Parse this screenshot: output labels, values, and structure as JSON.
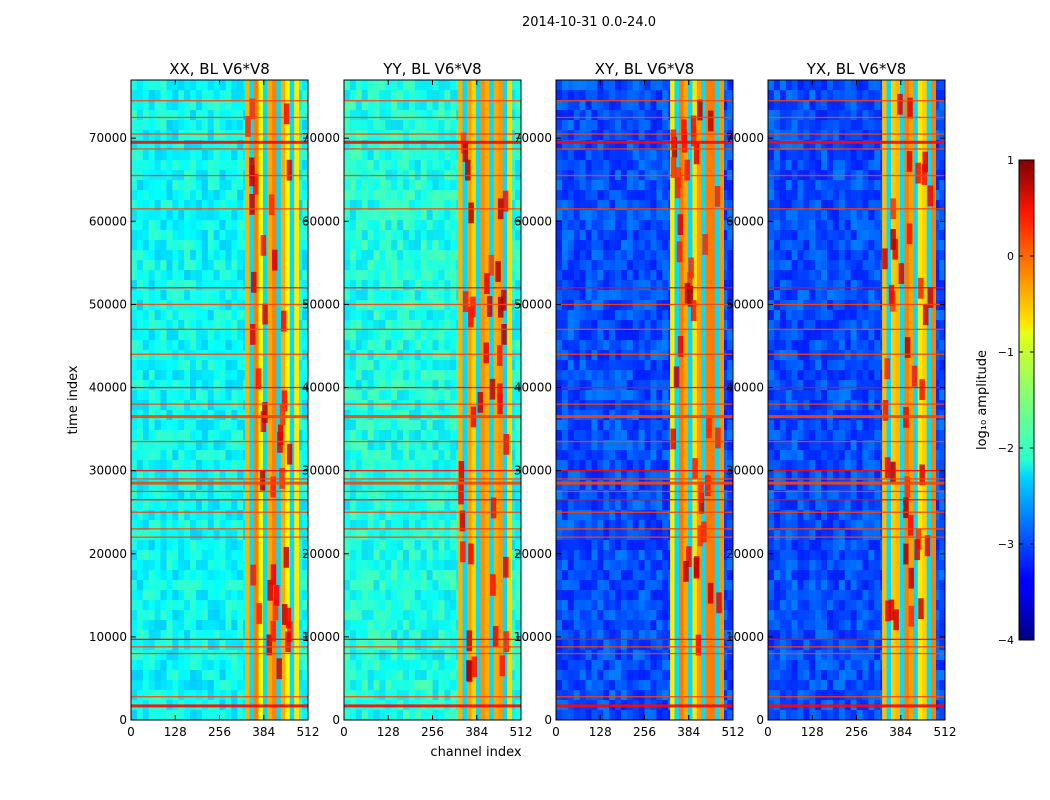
{
  "figure": {
    "suptitle": "2014-10-31 0.0-24.0"
  },
  "chart_data": {
    "type": "heatmap",
    "shared": {
      "xlabel": "channel index",
      "ylabel": "time index",
      "xlim": [
        0,
        512
      ],
      "ylim": [
        0,
        77000
      ],
      "xticks": [
        0,
        128,
        256,
        384,
        512
      ],
      "xtick_labels": [
        "0",
        "128",
        "256",
        "384",
        "512"
      ],
      "yticks": [
        0,
        10000,
        20000,
        30000,
        40000,
        50000,
        60000,
        70000
      ],
      "ytick_labels": [
        "0",
        "10000",
        "20000",
        "30000",
        "40000",
        "50000",
        "60000",
        "70000"
      ],
      "colormap": "jet"
    },
    "panels": [
      {
        "title": "XX, BL V6*V8",
        "pol": "XX",
        "background_log": -2.1
      },
      {
        "title": "YY, BL V6*V8",
        "pol": "YY",
        "background_log": -2.0
      },
      {
        "title": "XY, BL V6*V8",
        "pol": "XY",
        "background_log": -3.0
      },
      {
        "title": "YX, BL V6*V8",
        "pol": "YX",
        "background_log": -3.0
      }
    ],
    "colorbar": {
      "label": "log₁₀ amplitude",
      "vmin": -4,
      "vmax": 1,
      "ticks": [
        1,
        0,
        -1,
        -2,
        -3,
        -4
      ],
      "tick_labels": [
        "1",
        "0",
        "−1",
        "−2",
        "−3",
        "−4"
      ]
    },
    "bright_channel_band": [
      330,
      485
    ],
    "rfi_time_bands": [
      1700,
      2800,
      8000,
      8800,
      9700,
      22000,
      23000,
      25000,
      26500,
      27500,
      28500,
      29000,
      30000,
      33500,
      36500,
      38000,
      40000,
      44000,
      47000,
      50000,
      52000,
      61500,
      65500,
      68700,
      69500,
      70500,
      72500,
      74500
    ]
  }
}
